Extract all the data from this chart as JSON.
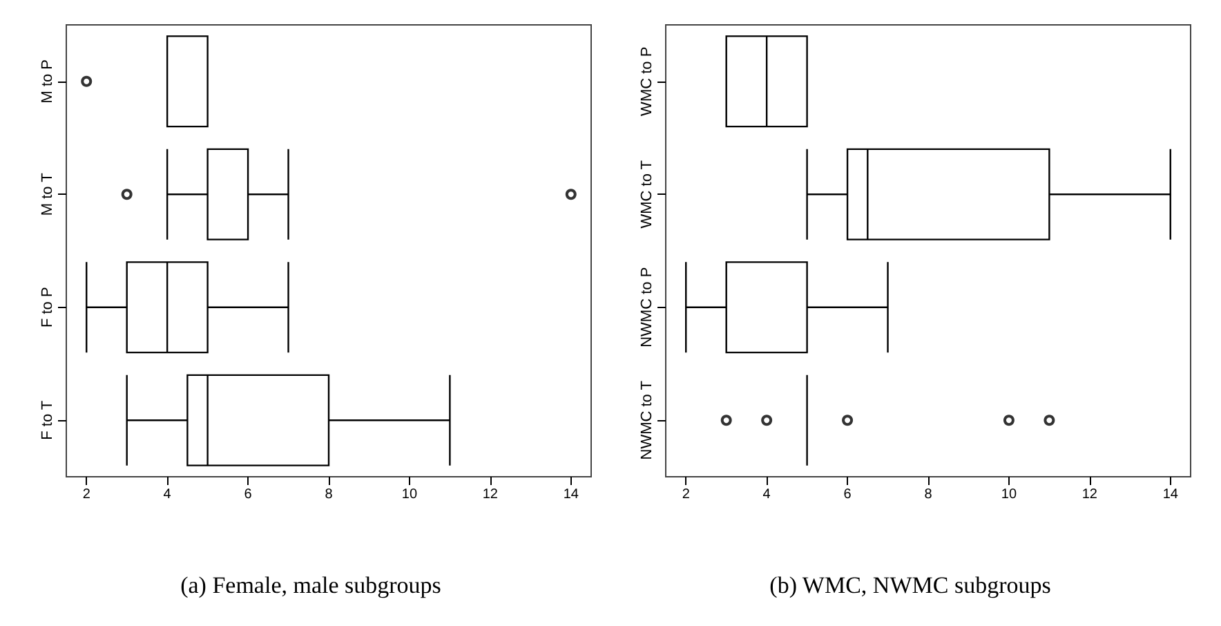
{
  "chart_data": [
    {
      "type": "box",
      "orientation": "horizontal",
      "title": "(a) Female, male subgroups",
      "categories": [
        "M to P",
        "M to T",
        "F to P",
        "F to T"
      ],
      "xlim": [
        1.5,
        14.5
      ],
      "xticks": [
        2,
        4,
        6,
        8,
        10,
        12,
        14
      ],
      "grid": false,
      "boxes": [
        {
          "low": 4,
          "q1": 4,
          "median": 5,
          "q3": 5,
          "high": 5,
          "outliers": [
            2
          ]
        },
        {
          "low": 4,
          "q1": 5,
          "median": 5,
          "q3": 6,
          "high": 7,
          "outliers": [
            3,
            14
          ]
        },
        {
          "low": 2,
          "q1": 3,
          "median": 4,
          "q3": 5,
          "high": 7
        },
        {
          "low": 3,
          "q1": 4.5,
          "median": 5,
          "q3": 8,
          "high": 11
        }
      ]
    },
    {
      "type": "box",
      "orientation": "horizontal",
      "title": "(b) WMC, NWMC subgroups",
      "categories": [
        "WMC to P",
        "WMC to T",
        "NWMC to P",
        "NWMC to T"
      ],
      "xlim": [
        1.5,
        14.5
      ],
      "xticks": [
        2,
        4,
        6,
        8,
        10,
        12,
        14
      ],
      "grid": false,
      "boxes": [
        {
          "low": 3,
          "q1": 3,
          "median": 4,
          "q3": 5,
          "high": 5
        },
        {
          "low": 5,
          "q1": 6,
          "median": 6.5,
          "q3": 11,
          "high": 14
        },
        {
          "low": 2,
          "q1": 3,
          "median": 5,
          "q3": 5,
          "high": 7
        },
        {
          "low": 5,
          "q1": 5,
          "median": 5,
          "q3": 5,
          "high": 5,
          "outliers": [
            3,
            4,
            6,
            10,
            11
          ]
        }
      ]
    }
  ]
}
